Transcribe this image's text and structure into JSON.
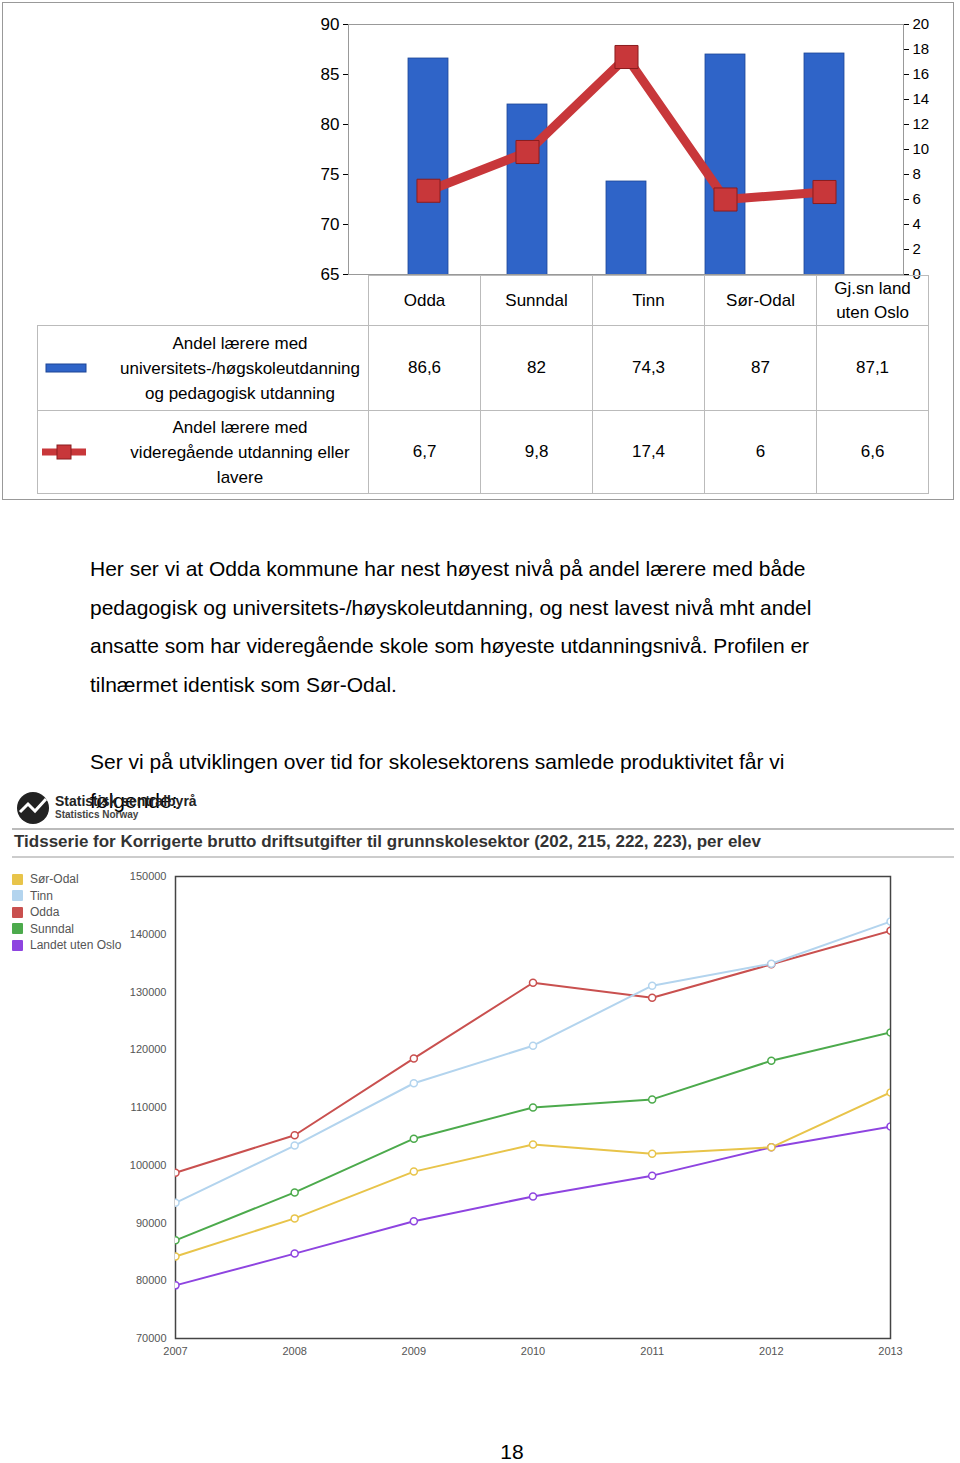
{
  "chart_data": [
    {
      "type": "bar",
      "categories": [
        "Odda",
        "Sunndal",
        "Tinn",
        "Sør-Odal",
        "Gj.sn land uten Oslo"
      ],
      "series": [
        {
          "name": "Andel lærere med universitets-/høgskoleutdanning og pedagogisk utdanning",
          "type": "bar",
          "color": "#2f64c8",
          "values": [
            86.6,
            82,
            74.3,
            87,
            87.1
          ],
          "value_labels": [
            "86,6",
            "82",
            "74,3",
            "87",
            "87,1"
          ]
        },
        {
          "name": "Andel lærere med videregående utdanning eller lavere",
          "type": "line",
          "axis": "y2",
          "color": "#c8373a",
          "marker": "square",
          "values": [
            6.7,
            9.8,
            17.4,
            6,
            6.6
          ],
          "value_labels": [
            "6,7",
            "9,8",
            "17,4",
            "6",
            "6,6"
          ]
        }
      ],
      "ylim": [
        65,
        90
      ],
      "yticks": [
        65,
        70,
        75,
        80,
        85,
        90
      ],
      "y2lim": [
        0,
        20
      ],
      "y2ticks": [
        0,
        2,
        4,
        6,
        8,
        10,
        12,
        14,
        16,
        18,
        20
      ],
      "grid": false
    },
    {
      "type": "line",
      "title": "Tidsserie for Korrigerte brutto driftsutgifter til grunnskolesektor (202, 215, 222, 223), per elev",
      "annotations": [
        "Statistisk sentralbyrå",
        "Statistics Norway"
      ],
      "x": [
        2007,
        2008,
        2009,
        2010,
        2011,
        2012,
        2013
      ],
      "series": [
        {
          "name": "Sør-Odal",
          "color": "#e8c44a",
          "values": [
            84200,
            90800,
            98900,
            103600,
            102000,
            103100,
            112600
          ]
        },
        {
          "name": "Tinn",
          "color": "#b3d4ee",
          "values": [
            93500,
            103400,
            114200,
            120700,
            131100,
            134900,
            142200
          ]
        },
        {
          "name": "Odda",
          "color": "#c9504f",
          "values": [
            98700,
            105200,
            118500,
            131600,
            129000,
            134800,
            140600
          ]
        },
        {
          "name": "Sunndal",
          "color": "#4caa4c",
          "values": [
            87000,
            95300,
            104600,
            110000,
            111400,
            118100,
            123000
          ]
        },
        {
          "name": "Landet uten Oslo",
          "color": "#8e44e0",
          "values": [
            79200,
            84700,
            90300,
            94600,
            98200,
            103100,
            106700
          ]
        }
      ],
      "marker": "circle",
      "xlim": [
        2007,
        2013
      ],
      "xticks": [
        2007,
        2008,
        2009,
        2010,
        2011,
        2012,
        2013
      ],
      "ylim": [
        70000,
        150000
      ],
      "yticks": [
        70000,
        80000,
        90000,
        100000,
        110000,
        120000,
        130000,
        140000,
        150000
      ],
      "legend": "top-left",
      "grid": false
    }
  ],
  "paragraphs": [
    "Her ser vi at Odda kommune har nest høyest nivå på andel lærere med både pedagogisk og universitets-/høyskoleutdanning, og nest lavest nivå mht andel ansatte som har videregående skole som høyeste utdanningsnivå.  Profilen er tilnærmet identisk som Sør-Odal.",
    "Ser vi på utviklingen over tid for skolesektorens samlede produktivitet får vi følgende:"
  ],
  "page_number": 18
}
